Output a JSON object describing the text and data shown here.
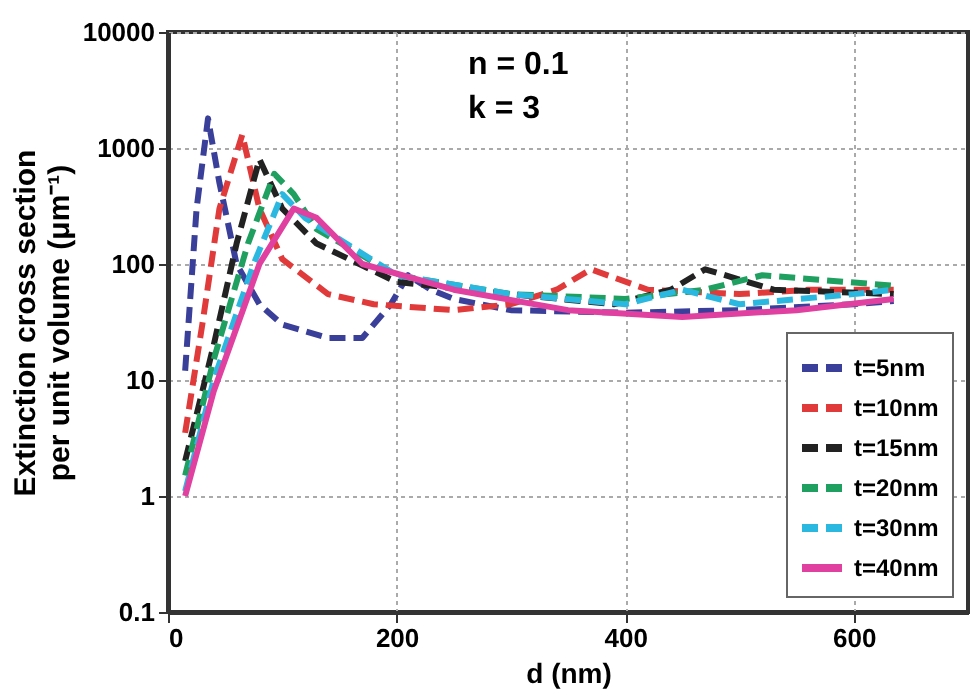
{
  "chart_data": {
    "type": "line",
    "xlabel": "d (nm)",
    "ylabel": "Extinction cross section\nper unit volume (μm⁻¹)",
    "xlim": [
      0,
      700
    ],
    "xticks": [
      0,
      200,
      400,
      600
    ],
    "ylim": [
      0.1,
      10000
    ],
    "yticks": [
      0.1,
      1,
      10,
      100,
      1000,
      10000
    ],
    "log": "y",
    "grid": true,
    "legend": "bottom right",
    "annotations": [
      "n = 0.1",
      "k = 3"
    ],
    "series": [
      {
        "name": "t=5nm",
        "color": "#3a3f9a",
        "line_style": "dashed",
        "x": [
          15,
          25,
          35,
          45,
          60,
          80,
          100,
          140,
          170,
          195,
          210,
          230,
          250,
          300,
          400,
          500,
          600,
          635
        ],
        "values": [
          12,
          300,
          1800,
          500,
          100,
          45,
          30,
          23,
          23,
          45,
          80,
          60,
          50,
          40,
          38,
          40,
          45,
          48
        ]
      },
      {
        "name": "t=10nm",
        "color": "#e03a3a",
        "line_style": "dashed",
        "x": [
          15,
          30,
          45,
          65,
          80,
          100,
          140,
          180,
          250,
          300,
          340,
          370,
          420,
          500,
          560,
          635
        ],
        "values": [
          3.5,
          30,
          300,
          1300,
          300,
          110,
          55,
          45,
          40,
          45,
          60,
          90,
          60,
          55,
          60,
          60
        ]
      },
      {
        "name": "t=15nm",
        "color": "#222222",
        "line_style": "dashed",
        "x": [
          15,
          40,
          60,
          80,
          100,
          130,
          200,
          300,
          390,
          440,
          470,
          530,
          635
        ],
        "values": [
          2,
          20,
          150,
          800,
          300,
          150,
          70,
          55,
          45,
          60,
          90,
          60,
          55
        ]
      },
      {
        "name": "t=20nm",
        "color": "#1fa060",
        "line_style": "dashed",
        "x": [
          15,
          40,
          70,
          93,
          110,
          130,
          200,
          300,
          400,
          470,
          520,
          635
        ],
        "values": [
          1.5,
          15,
          150,
          600,
          400,
          200,
          80,
          55,
          50,
          60,
          80,
          65
        ]
      },
      {
        "name": "t=30nm",
        "color": "#2ab8e0",
        "line_style": "dashed",
        "x": [
          15,
          40,
          75,
          100,
          120,
          200,
          300,
          400,
          450,
          500,
          600,
          635
        ],
        "values": [
          1.1,
          10,
          100,
          400,
          250,
          80,
          55,
          45,
          60,
          45,
          55,
          60
        ]
      },
      {
        "name": "t=40nm",
        "color": "#e040a0",
        "line_style": "solid",
        "x": [
          15,
          40,
          80,
          110,
          130,
          170,
          250,
          350,
          450,
          550,
          635
        ],
        "values": [
          1,
          8,
          100,
          300,
          250,
          100,
          60,
          40,
          35,
          40,
          50
        ]
      }
    ]
  }
}
